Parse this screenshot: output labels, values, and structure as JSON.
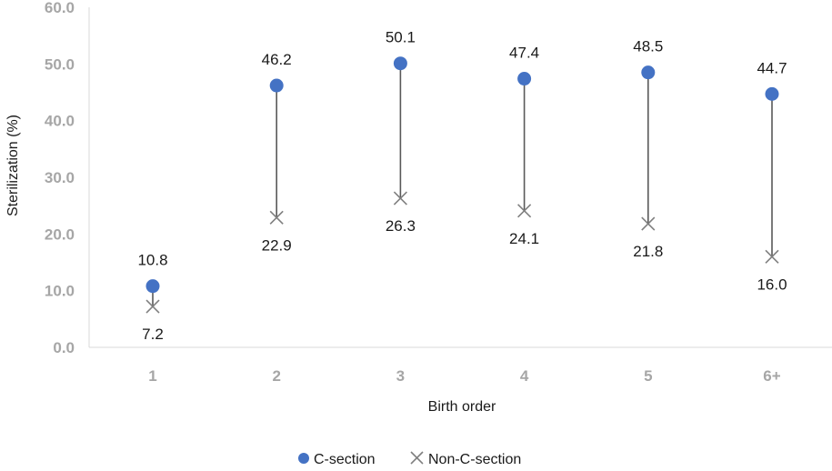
{
  "colors": {
    "csection": "#4472c4",
    "non_csection": "#7f7f7f",
    "connector": "#595959",
    "axis": "#d9d9d9",
    "tick_label": "#a6a6a6"
  },
  "chart_data": {
    "type": "scatter",
    "categories": [
      "1",
      "2",
      "3",
      "4",
      "5",
      "6+"
    ],
    "series": [
      {
        "name": "C-section",
        "marker": "circle",
        "values": [
          10.8,
          46.2,
          50.1,
          47.4,
          48.5,
          44.7
        ]
      },
      {
        "name": "Non-C-section",
        "marker": "x",
        "values": [
          7.2,
          22.9,
          26.3,
          24.1,
          21.8,
          16.0
        ]
      }
    ],
    "xlabel": "Birth order",
    "ylabel": "Sterilization (%)",
    "ylim": [
      0,
      60
    ],
    "yticks": [
      "0.0",
      "10.0",
      "20.0",
      "30.0",
      "40.0",
      "50.0",
      "60.0"
    ],
    "grid": false,
    "legend": "bottom-center"
  }
}
